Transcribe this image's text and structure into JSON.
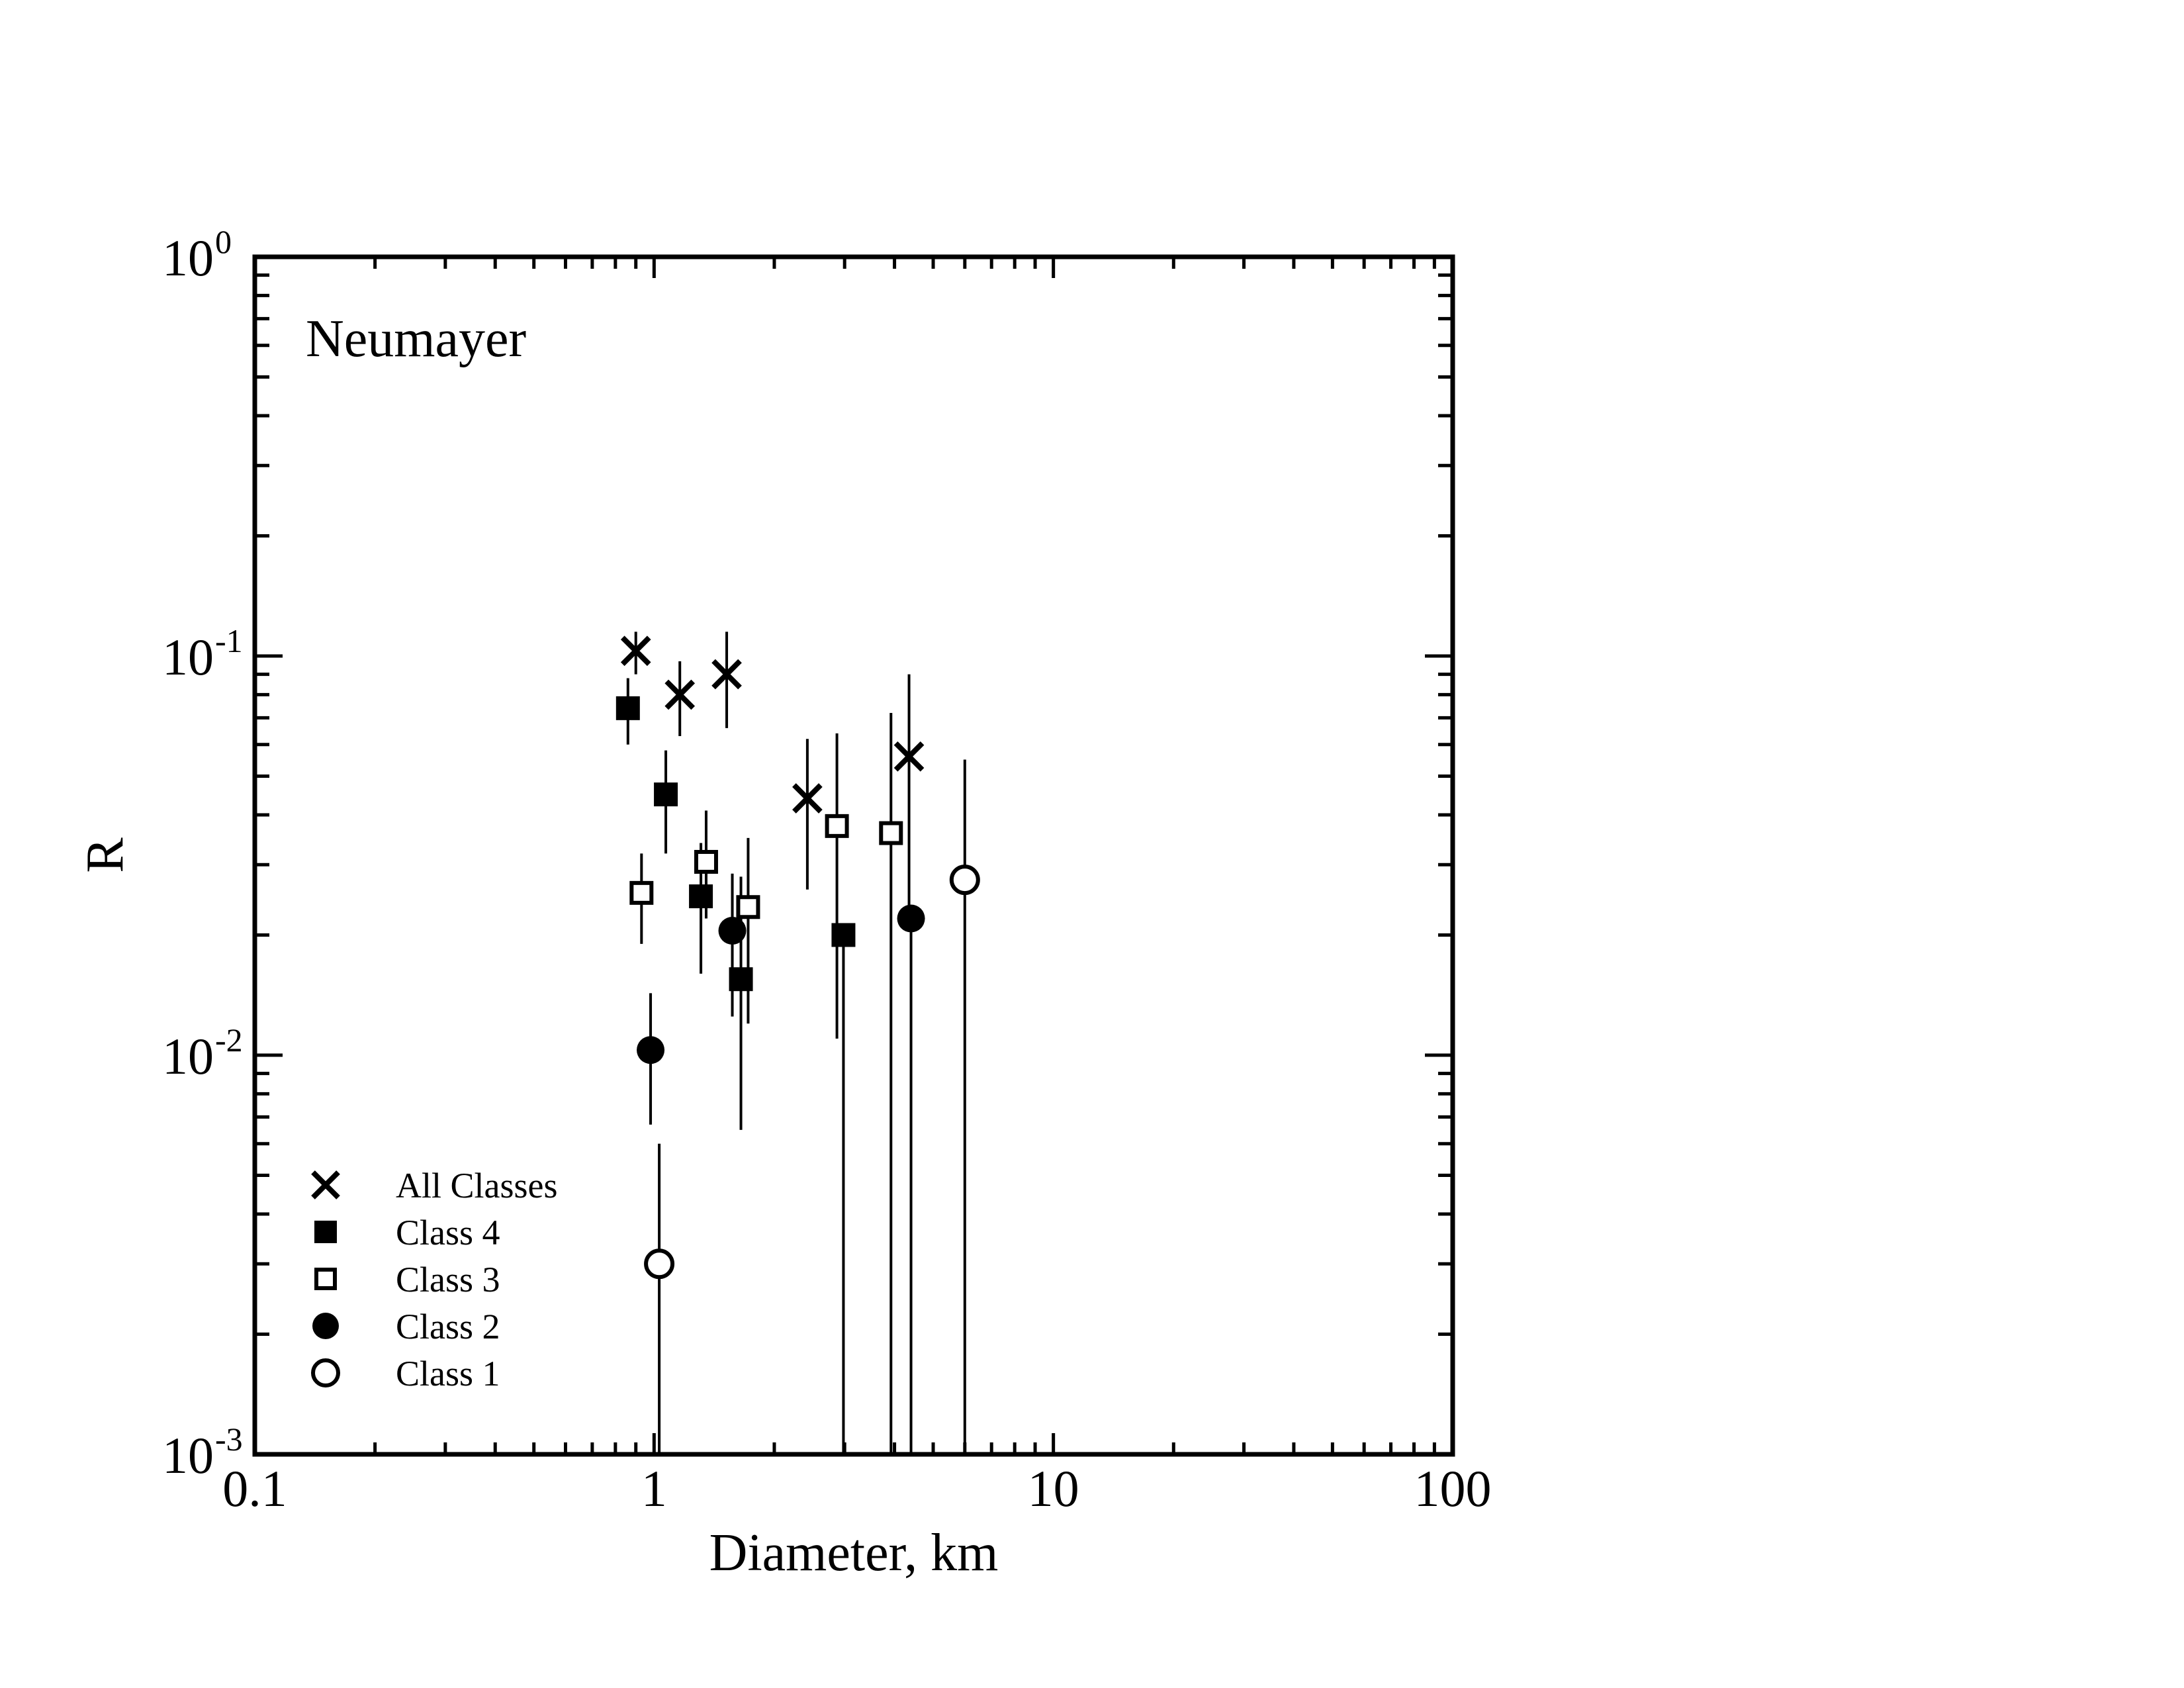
{
  "chart_data": {
    "type": "scatter",
    "annotation": "Neumayer",
    "xlabel": "Diameter, km",
    "ylabel": "R",
    "xscale": "log",
    "yscale": "log",
    "xlim": [
      0.1,
      100
    ],
    "ylim": [
      0.001,
      1
    ],
    "x_ticks": [
      {
        "value": 0.1,
        "label": "0.1"
      },
      {
        "value": 1,
        "label": "1"
      },
      {
        "value": 10,
        "label": "10"
      },
      {
        "value": 100,
        "label": "100"
      }
    ],
    "y_ticks": [
      {
        "value": 0.001,
        "base": "10",
        "exp": "-3"
      },
      {
        "value": 0.01,
        "base": "10",
        "exp": "-2"
      },
      {
        "value": 0.1,
        "base": "10",
        "exp": "-1"
      },
      {
        "value": 1,
        "base": "10",
        "exp": "0"
      }
    ],
    "legend_position": "bottom-left",
    "error_bar_color": "#000000",
    "series": [
      {
        "name": "All Classes",
        "marker": "cross",
        "points": [
          {
            "x": 0.9,
            "y": 0.103,
            "ylow": 0.09,
            "yhigh": 0.115
          },
          {
            "x": 1.16,
            "y": 0.08,
            "ylow": 0.063,
            "yhigh": 0.097
          },
          {
            "x": 1.52,
            "y": 0.09,
            "ylow": 0.066,
            "yhigh": 0.115
          },
          {
            "x": 2.42,
            "y": 0.044,
            "ylow": 0.026,
            "yhigh": 0.062
          },
          {
            "x": 4.35,
            "y": 0.056,
            "ylow": 0.022,
            "yhigh": 0.09
          }
        ]
      },
      {
        "name": "Class 4",
        "marker": "filled-square",
        "points": [
          {
            "x": 0.86,
            "y": 0.074,
            "ylow": 0.06,
            "yhigh": 0.088
          },
          {
            "x": 1.07,
            "y": 0.045,
            "ylow": 0.032,
            "yhigh": 0.058
          },
          {
            "x": 1.31,
            "y": 0.025,
            "ylow": 0.016,
            "yhigh": 0.034
          },
          {
            "x": 1.65,
            "y": 0.0155,
            "ylow": 0.0065,
            "yhigh": 0.028
          },
          {
            "x": 2.98,
            "y": 0.02,
            "ylow": 0.001,
            "yhigh": 0.02
          }
        ]
      },
      {
        "name": "Class 3",
        "marker": "open-square",
        "points": [
          {
            "x": 0.93,
            "y": 0.0255,
            "ylow": 0.019,
            "yhigh": 0.032
          },
          {
            "x": 1.35,
            "y": 0.0305,
            "ylow": 0.022,
            "yhigh": 0.041
          },
          {
            "x": 1.72,
            "y": 0.0235,
            "ylow": 0.012,
            "yhigh": 0.035
          },
          {
            "x": 2.87,
            "y": 0.0375,
            "ylow": 0.011,
            "yhigh": 0.064
          },
          {
            "x": 3.92,
            "y": 0.036,
            "ylow": 0.001,
            "yhigh": 0.072
          }
        ]
      },
      {
        "name": "Class 2",
        "marker": "filled-circle",
        "points": [
          {
            "x": 0.98,
            "y": 0.0103,
            "ylow": 0.0067,
            "yhigh": 0.0143
          },
          {
            "x": 1.57,
            "y": 0.0205,
            "ylow": 0.0125,
            "yhigh": 0.0285
          },
          {
            "x": 4.4,
            "y": 0.022,
            "ylow": 0.001,
            "yhigh": 0.022
          }
        ]
      },
      {
        "name": "Class 1",
        "marker": "open-circle",
        "points": [
          {
            "x": 1.03,
            "y": 0.003,
            "ylow": 0.001,
            "yhigh": 0.006
          },
          {
            "x": 6.0,
            "y": 0.0275,
            "ylow": 0.001,
            "yhigh": 0.055
          }
        ]
      }
    ]
  }
}
